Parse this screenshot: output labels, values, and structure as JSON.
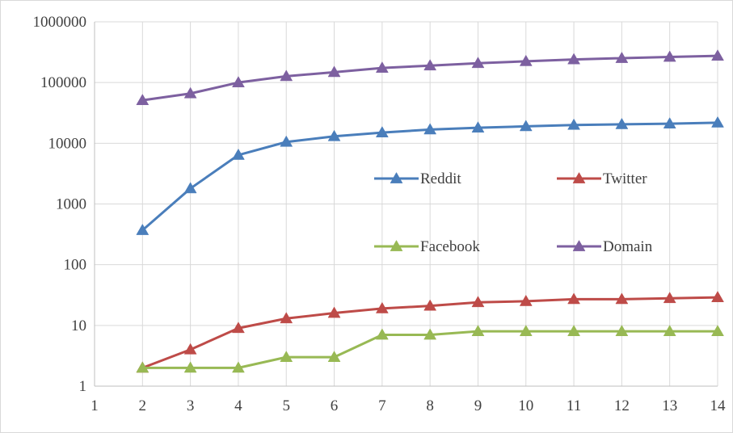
{
  "chart_data": {
    "type": "line",
    "title": "",
    "xlabel": "",
    "ylabel": "",
    "y_scale": "log",
    "ylim": [
      1,
      1000000
    ],
    "xlim": [
      1,
      14
    ],
    "grid": true,
    "legend_position": "center-right",
    "x_ticks": [
      "1",
      "2",
      "3",
      "4",
      "5",
      "6",
      "7",
      "8",
      "9",
      "10",
      "11",
      "12",
      "13",
      "14"
    ],
    "y_ticks": [
      "1",
      "10",
      "100",
      "1000",
      "10000",
      "100000",
      "1000000"
    ],
    "x": [
      2,
      3,
      4,
      5,
      6,
      7,
      8,
      9,
      10,
      11,
      12,
      13,
      14
    ],
    "series": [
      {
        "name": "Reddit",
        "color": "#4a7ebb",
        "values": [
          370,
          1800,
          6400,
          10500,
          13000,
          15000,
          16800,
          18000,
          19000,
          20000,
          20500,
          21000,
          21800
        ]
      },
      {
        "name": "Twitter",
        "color": "#be4b48",
        "values": [
          2,
          4,
          9,
          13,
          16,
          19,
          21,
          24,
          25,
          27,
          27,
          28,
          29
        ]
      },
      {
        "name": "Facebook",
        "color": "#98b954",
        "values": [
          2,
          2,
          2,
          3,
          3,
          7,
          7,
          8,
          8,
          8,
          8,
          8,
          8
        ]
      },
      {
        "name": "Domain",
        "color": "#7d60a0",
        "values": [
          51000,
          66000,
          100000,
          127000,
          148000,
          174000,
          190000,
          208000,
          224000,
          240000,
          252000,
          264000,
          275000
        ]
      }
    ]
  }
}
